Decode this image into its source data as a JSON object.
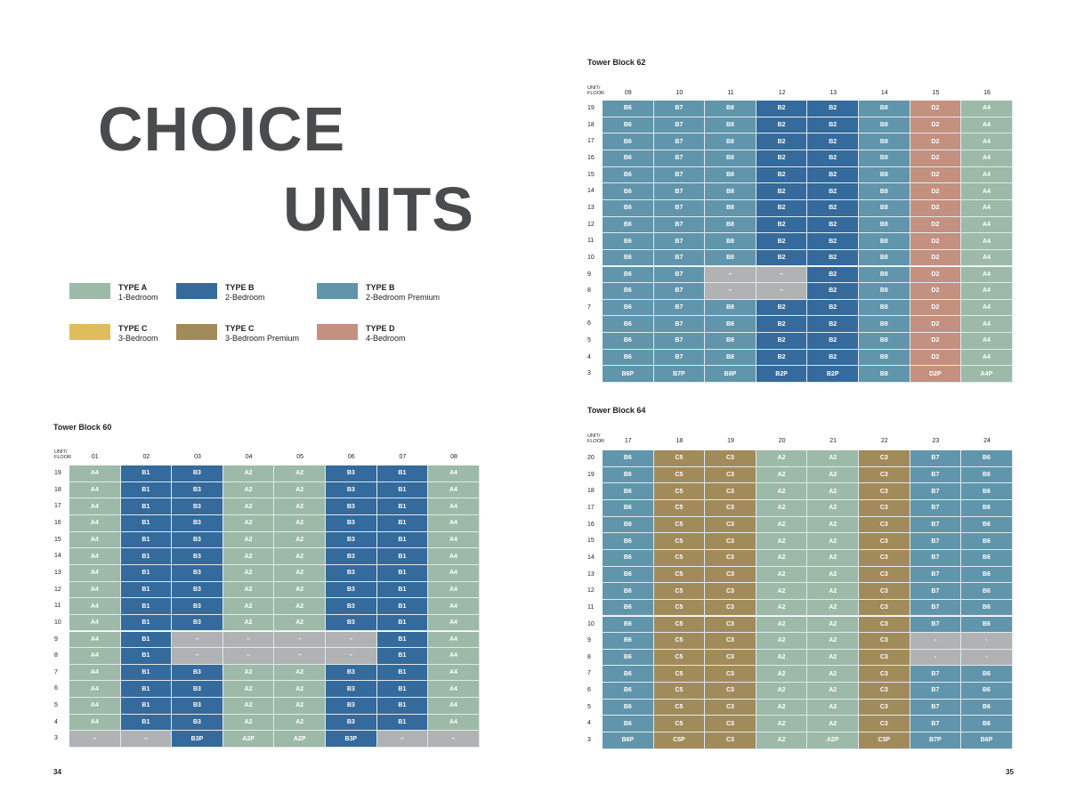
{
  "heading": {
    "line1": "CHOICE",
    "line2": "UNITS"
  },
  "legend": [
    {
      "type": "TYPE A",
      "desc": "1-Bedroom",
      "color": "#9dbaa8"
    },
    {
      "type": "TYPE B",
      "desc": "2-Bedroom",
      "color": "#356a9c"
    },
    {
      "type": "TYPE B",
      "desc": "2-Bedroom Premium",
      "color": "#6195ab"
    },
    {
      "type": "TYPE C",
      "desc": "3-Bedroom",
      "color": "#dfbd5d"
    },
    {
      "type": "TYPE C",
      "desc": "3-Bedroom Premium",
      "color": "#a28b5b"
    },
    {
      "type": "TYPE D",
      "desc": "4-Bedroom",
      "color": "#c49080"
    }
  ],
  "unit_colors": {
    "A": "#9dbaa8",
    "B1": "#356a9c",
    "B2": "#356a9c",
    "B3": "#356a9c",
    "B6": "#6195ab",
    "B7": "#6195ab",
    "B8": "#6195ab",
    "C3": "#a28b5b",
    "C5": "#a28b5b",
    "D": "#c49080",
    "none": "#b1b2b4"
  },
  "blocks": {
    "b62": {
      "title": "Tower Block 62",
      "corner": [
        "UNIT/",
        "FLOOR"
      ],
      "units": [
        "09",
        "10",
        "11",
        "12",
        "13",
        "14",
        "15",
        "16"
      ],
      "rows": [
        {
          "floor": "19",
          "cells": [
            "B6",
            "B7",
            "B8",
            "B2",
            "B2",
            "B8",
            "D2",
            "A4"
          ]
        },
        {
          "floor": "18",
          "cells": [
            "B6",
            "B7",
            "B8",
            "B2",
            "B2",
            "B8",
            "D2",
            "A4"
          ]
        },
        {
          "floor": "17",
          "cells": [
            "B6",
            "B7",
            "B8",
            "B2",
            "B2",
            "B8",
            "D2",
            "A4"
          ]
        },
        {
          "floor": "16",
          "cells": [
            "B6",
            "B7",
            "B8",
            "B2",
            "B2",
            "B8",
            "D2",
            "A4"
          ]
        },
        {
          "floor": "15",
          "cells": [
            "B6",
            "B7",
            "B8",
            "B2",
            "B2",
            "B8",
            "D2",
            "A4"
          ]
        },
        {
          "floor": "14",
          "cells": [
            "B6",
            "B7",
            "B8",
            "B2",
            "B2",
            "B8",
            "D2",
            "A4"
          ]
        },
        {
          "floor": "13",
          "cells": [
            "B6",
            "B7",
            "B8",
            "B2",
            "B2",
            "B8",
            "D2",
            "A4"
          ]
        },
        {
          "floor": "12",
          "cells": [
            "B6",
            "B7",
            "B8",
            "B2",
            "B2",
            "B8",
            "D2",
            "A4"
          ]
        },
        {
          "floor": "11",
          "cells": [
            "B6",
            "B7",
            "B8",
            "B2",
            "B2",
            "B8",
            "D2",
            "A4"
          ]
        },
        {
          "floor": "10",
          "cells": [
            "B6",
            "B7",
            "B8",
            "B2",
            "B2",
            "B8",
            "D2",
            "A4"
          ]
        },
        {
          "floor": "9",
          "cells": [
            "B6",
            "B7",
            "–",
            "–",
            "B2",
            "B8",
            "D2",
            "A4"
          ]
        },
        {
          "floor": "8",
          "cells": [
            "B6",
            "B7",
            "–",
            "–",
            "B2",
            "B8",
            "D2",
            "A4"
          ]
        },
        {
          "floor": "7",
          "cells": [
            "B6",
            "B7",
            "B8",
            "B2",
            "B2",
            "B8",
            "D2",
            "A4"
          ]
        },
        {
          "floor": "6",
          "cells": [
            "B6",
            "B7",
            "B8",
            "B2",
            "B2",
            "B8",
            "D2",
            "A4"
          ]
        },
        {
          "floor": "5",
          "cells": [
            "B6",
            "B7",
            "B8",
            "B2",
            "B2",
            "B8",
            "D2",
            "A4"
          ]
        },
        {
          "floor": "4",
          "cells": [
            "B6",
            "B7",
            "B8",
            "B2",
            "B2",
            "B8",
            "D2",
            "A4"
          ]
        },
        {
          "floor": "3",
          "cells": [
            "B6P",
            "B7P",
            "B8P",
            "B2P",
            "B2P",
            "B8",
            "D2P",
            "A4P"
          ]
        }
      ]
    },
    "b64": {
      "title": "Tower Block 64",
      "corner": [
        "UNIT/",
        "FLOOR"
      ],
      "units": [
        "17",
        "18",
        "19",
        "20",
        "21",
        "22",
        "23",
        "24"
      ],
      "rows": [
        {
          "floor": "20",
          "cells": [
            "B6",
            "C5",
            "C3",
            "A2",
            "A2",
            "C3",
            "B7",
            "B6"
          ]
        },
        {
          "floor": "19",
          "cells": [
            "B6",
            "C5",
            "C3",
            "A2",
            "A2",
            "C3",
            "B7",
            "B6"
          ]
        },
        {
          "floor": "18",
          "cells": [
            "B6",
            "C5",
            "C3",
            "A2",
            "A2",
            "C3",
            "B7",
            "B6"
          ]
        },
        {
          "floor": "17",
          "cells": [
            "B6",
            "C5",
            "C3",
            "A2",
            "A2",
            "C3",
            "B7",
            "B6"
          ]
        },
        {
          "floor": "16",
          "cells": [
            "B6",
            "C5",
            "C3",
            "A2",
            "A2",
            "C3",
            "B7",
            "B6"
          ]
        },
        {
          "floor": "15",
          "cells": [
            "B6",
            "C5",
            "C3",
            "A2",
            "A2",
            "C3",
            "B7",
            "B6"
          ]
        },
        {
          "floor": "14",
          "cells": [
            "B6",
            "C5",
            "C3",
            "A2",
            "A2",
            "C3",
            "B7",
            "B6"
          ]
        },
        {
          "floor": "13",
          "cells": [
            "B6",
            "C5",
            "C3",
            "A2",
            "A2",
            "C3",
            "B7",
            "B6"
          ]
        },
        {
          "floor": "12",
          "cells": [
            "B6",
            "C5",
            "C3",
            "A2",
            "A2",
            "C3",
            "B7",
            "B6"
          ]
        },
        {
          "floor": "11",
          "cells": [
            "B6",
            "C5",
            "C3",
            "A2",
            "A2",
            "C3",
            "B7",
            "B6"
          ]
        },
        {
          "floor": "10",
          "cells": [
            "B6",
            "C5",
            "C3",
            "A2",
            "A2",
            "C3",
            "B7",
            "B6"
          ]
        },
        {
          "floor": "9",
          "cells": [
            "B6",
            "C5",
            "C3",
            "A2",
            "A2",
            "C3",
            "-",
            "-"
          ]
        },
        {
          "floor": "8",
          "cells": [
            "B6",
            "C5",
            "C3",
            "A2",
            "A2",
            "C3",
            "-",
            "-"
          ]
        },
        {
          "floor": "7",
          "cells": [
            "B6",
            "C5",
            "C3",
            "A2",
            "A2",
            "C3",
            "B7",
            "B6"
          ]
        },
        {
          "floor": "6",
          "cells": [
            "B6",
            "C5",
            "C3",
            "A2",
            "A2",
            "C3",
            "B7",
            "B6"
          ]
        },
        {
          "floor": "5",
          "cells": [
            "B6",
            "C5",
            "C3",
            "A2",
            "A2",
            "C3",
            "B7",
            "B6"
          ]
        },
        {
          "floor": "4",
          "cells": [
            "B6",
            "C5",
            "C3",
            "A2",
            "A2",
            "C3",
            "B7",
            "B6"
          ]
        },
        {
          "floor": "3",
          "cells": [
            "B6P",
            "C5P",
            "C3",
            "A2",
            "A2P",
            "C3P",
            "B7P",
            "B6P"
          ]
        }
      ]
    },
    "b60": {
      "title": "Tower Block 60",
      "corner": [
        "UNIT/",
        "FLOOR"
      ],
      "units": [
        "01",
        "02",
        "03",
        "04",
        "05",
        "06",
        "07",
        "08"
      ],
      "rows": [
        {
          "floor": "19",
          "cells": [
            "A4",
            "B1",
            "B3",
            "A2",
            "A2",
            "B3",
            "B1",
            "A4"
          ]
        },
        {
          "floor": "18",
          "cells": [
            "A4",
            "B1",
            "B3",
            "A2",
            "A2",
            "B3",
            "B1",
            "A4"
          ]
        },
        {
          "floor": "17",
          "cells": [
            "A4",
            "B1",
            "B3",
            "A2",
            "A2",
            "B3",
            "B1",
            "A4"
          ]
        },
        {
          "floor": "16",
          "cells": [
            "A4",
            "B1",
            "B3",
            "A2",
            "A2",
            "B3",
            "B1",
            "A4"
          ]
        },
        {
          "floor": "15",
          "cells": [
            "A4",
            "B1",
            "B3",
            "A2",
            "A2",
            "B3",
            "B1",
            "A4"
          ]
        },
        {
          "floor": "14",
          "cells": [
            "A4",
            "B1",
            "B3",
            "A2",
            "A2",
            "B3",
            "B1",
            "A4"
          ]
        },
        {
          "floor": "13",
          "cells": [
            "A4",
            "B1",
            "B3",
            "A2",
            "A2",
            "B3",
            "B1",
            "A4"
          ]
        },
        {
          "floor": "12",
          "cells": [
            "A4",
            "B1",
            "B3",
            "A2",
            "A2",
            "B3",
            "B1",
            "A4"
          ]
        },
        {
          "floor": "11",
          "cells": [
            "A4",
            "B1",
            "B3",
            "A2",
            "A2",
            "B3",
            "B1",
            "A4"
          ]
        },
        {
          "floor": "10",
          "cells": [
            "A4",
            "B1",
            "B3",
            "A2",
            "A2",
            "B3",
            "B1",
            "A4"
          ]
        },
        {
          "floor": "9",
          "cells": [
            "A4",
            "B1",
            "–",
            "–",
            "–",
            "–",
            "B1",
            "A4"
          ]
        },
        {
          "floor": "8",
          "cells": [
            "A4",
            "B1",
            "–",
            "–",
            "–",
            "–",
            "B1",
            "A4"
          ]
        },
        {
          "floor": "7",
          "cells": [
            "A4",
            "B1",
            "B3",
            "A2",
            "A2",
            "B3",
            "B1",
            "A4"
          ]
        },
        {
          "floor": "6",
          "cells": [
            "A4",
            "B1",
            "B3",
            "A2",
            "A2",
            "B3",
            "B1",
            "A4"
          ]
        },
        {
          "floor": "5",
          "cells": [
            "A4",
            "B1",
            "B3",
            "A2",
            "A2",
            "B3",
            "B1",
            "A4"
          ]
        },
        {
          "floor": "4",
          "cells": [
            "A4",
            "B1",
            "B3",
            "A2",
            "A2",
            "B3",
            "B1",
            "A4"
          ]
        },
        {
          "floor": "3",
          "cells": [
            "–",
            "–",
            "B3P",
            "A2P",
            "A2P",
            "B3P",
            "–",
            "–"
          ]
        }
      ]
    }
  },
  "page_numbers": {
    "left": "34",
    "right": "35"
  }
}
